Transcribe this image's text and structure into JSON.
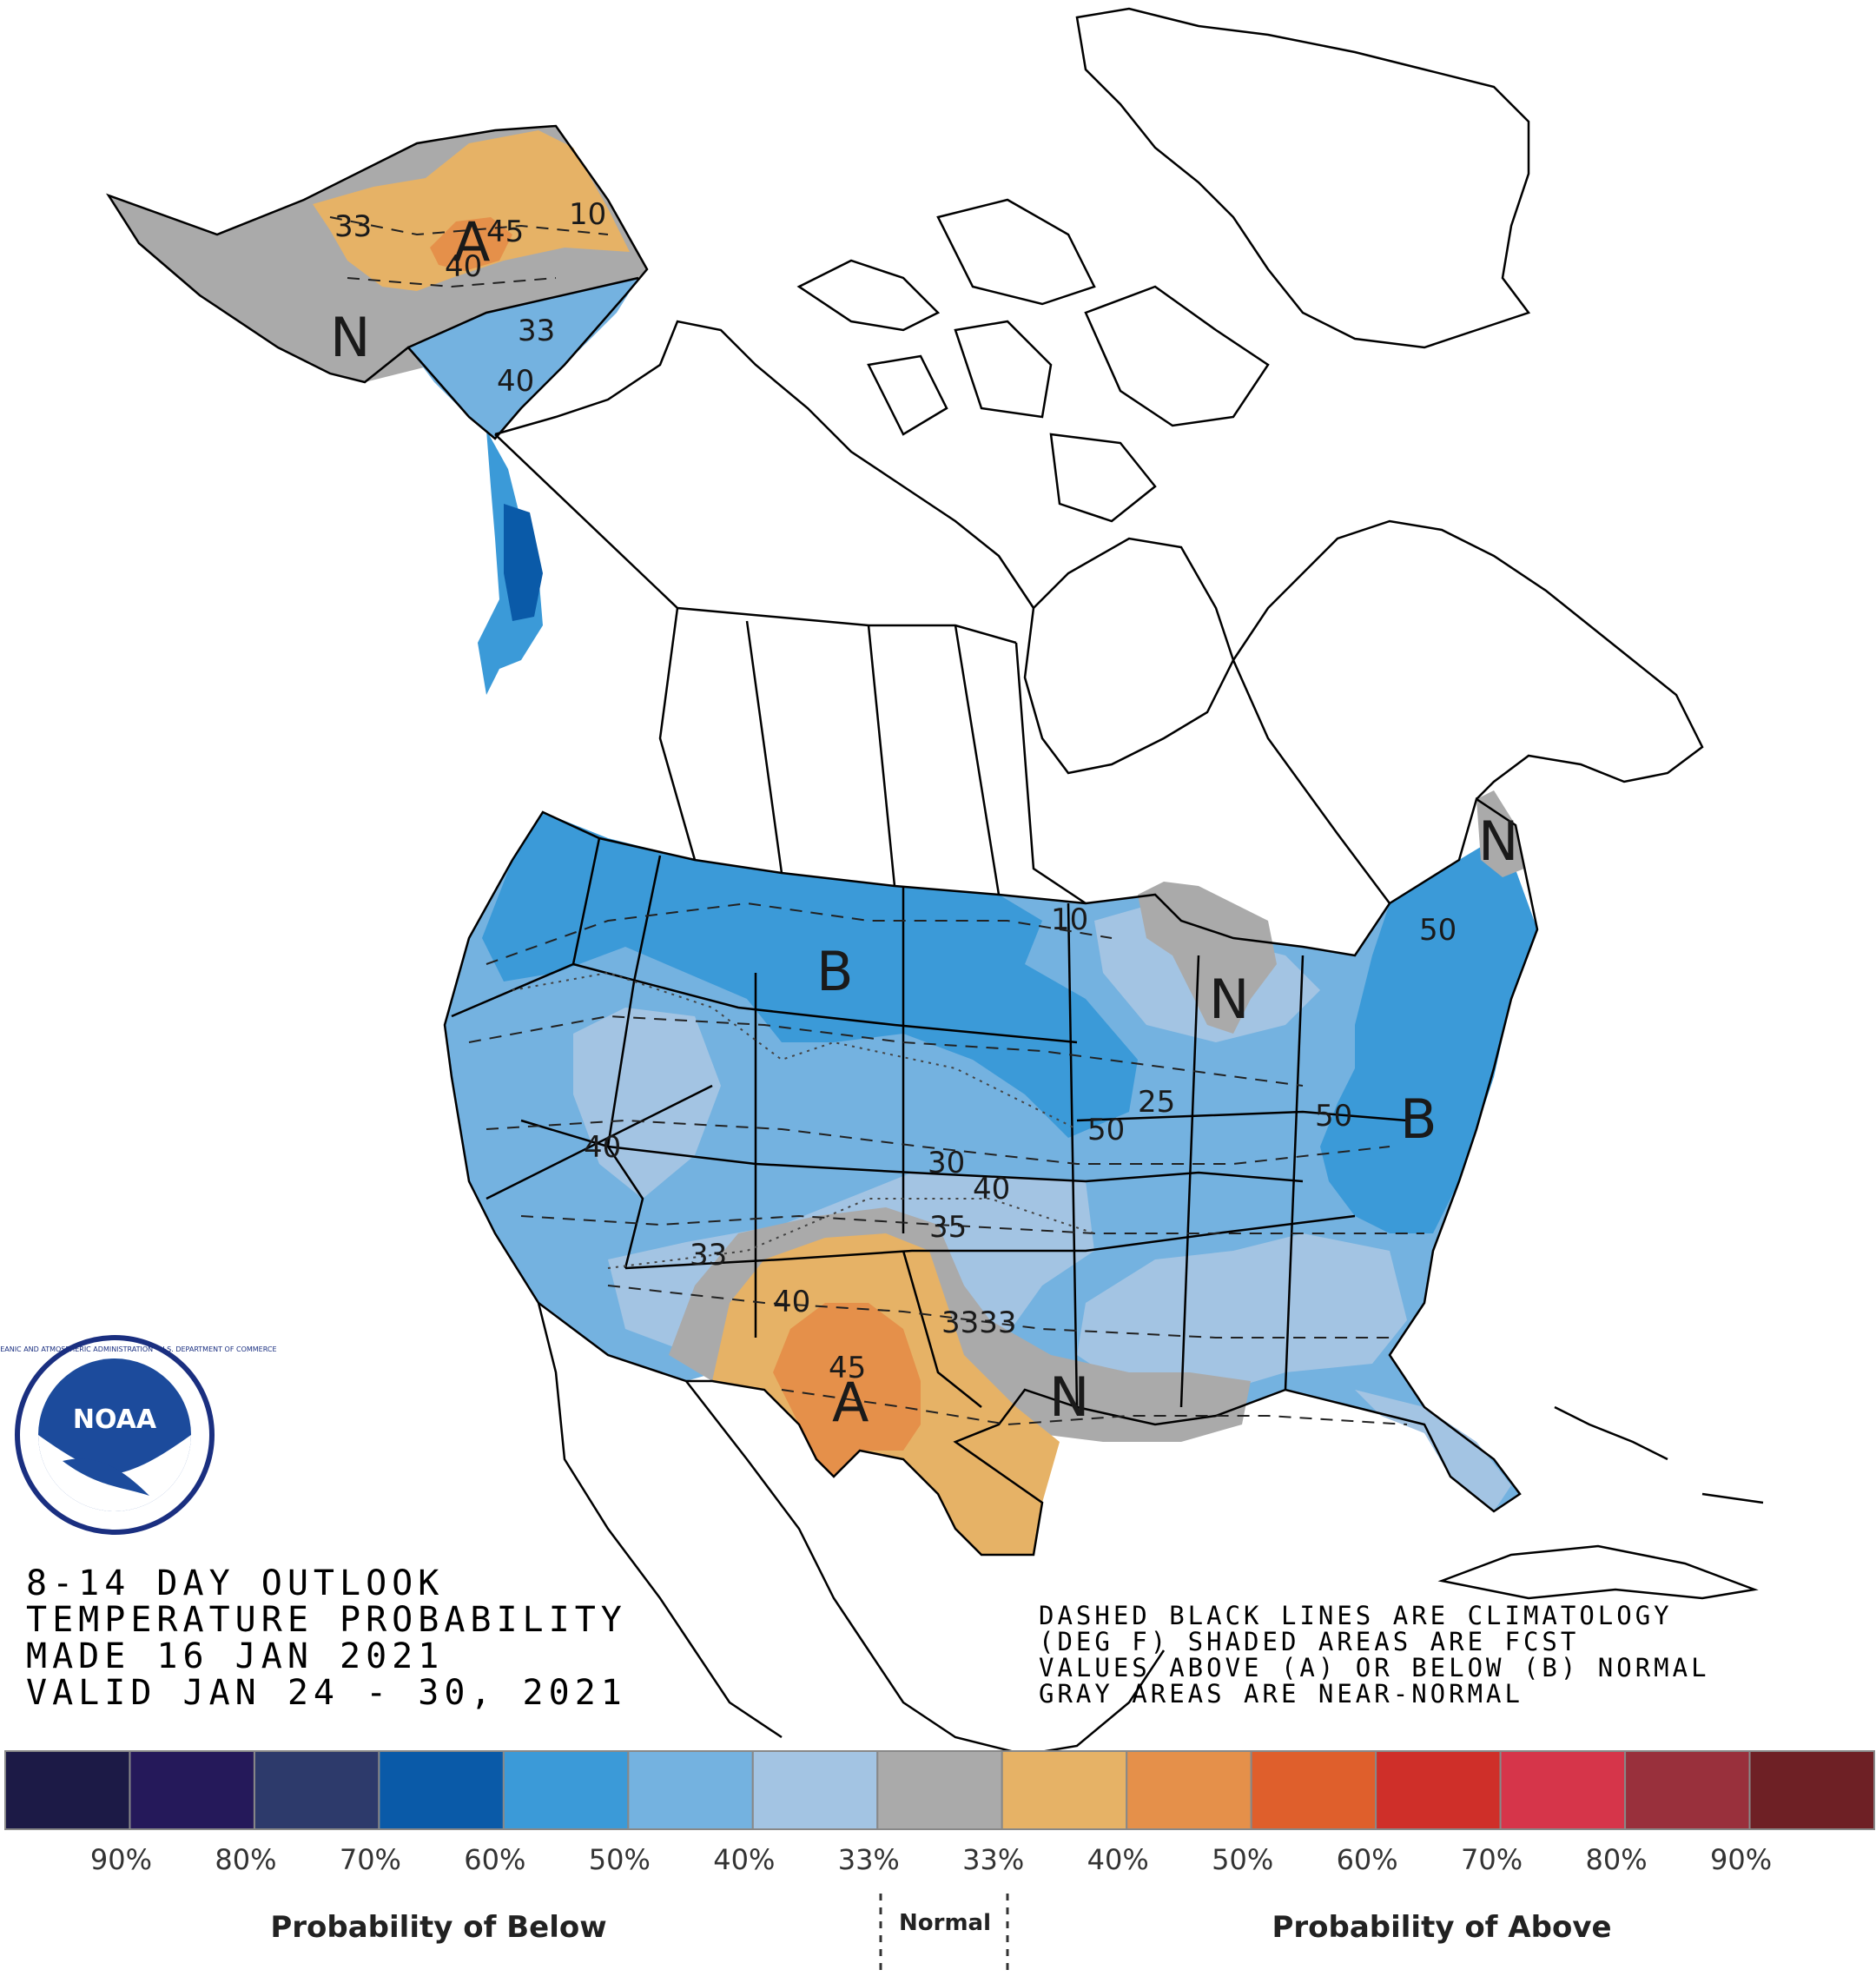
{
  "title": {
    "line1": "8-14 DAY OUTLOOK",
    "line2": "TEMPERATURE PROBABILITY",
    "line3": "MADE  16 JAN 2021",
    "line4": "VALID  JAN 24 - 30, 2021"
  },
  "notes": {
    "line1": "DASHED BLACK LINES ARE CLIMATOLOGY",
    "line2": "(DEG F) SHADED AREAS ARE FCST",
    "line3": "VALUES ABOVE (A) OR BELOW (B) NORMAL",
    "line4": "GRAY AREAS ARE NEAR-NORMAL"
  },
  "logo": {
    "text": "NOAA",
    "ring_text": "NATIONAL OCEANIC AND ATMOSPHERIC ADMINISTRATION · U.S. DEPARTMENT OF COMMERCE"
  },
  "map_labels": {
    "alaska_A": "A",
    "alaska_N": "N",
    "plains_B": "B",
    "greatlakes_N": "N",
    "east_B": "B",
    "texas_A": "A",
    "gulf_N": "N",
    "maine_N": "N",
    "c33_ak_w": "33",
    "c33_ak_s": "33",
    "c40_ak": "40",
    "c40_ak_blue": "40",
    "c10_ak": "10",
    "c45_ak": "45",
    "c40_west": "40",
    "c40_central": "40",
    "c50_central": "50",
    "c50_east": "50",
    "c50_ne": "50",
    "c33_sw": "33",
    "c3333": "3333",
    "c40_tx": "40",
    "c45_tx": "45",
    "c10_mn": "10",
    "c25_ia": "25",
    "c30_ks": "30",
    "c35_ok": "35"
  },
  "legend": {
    "colors": [
      "#1c1a46",
      "#25195a",
      "#2d3a6b",
      "#0a5aa8",
      "#3b9ad8",
      "#74b2e0",
      "#a3c4e3",
      "#aaaaaa",
      "#e6b266",
      "#e5904a",
      "#df5f2c",
      "#cf2f29",
      "#d6354a",
      "#99303c",
      "#6e2025"
    ],
    "ticks_below": [
      "90%",
      "80%",
      "70%",
      "60%",
      "50%",
      "40%",
      "33%"
    ],
    "ticks_above": [
      "33%",
      "40%",
      "50%",
      "60%",
      "70%",
      "80%",
      "90%"
    ],
    "below_label": "Probability of Below",
    "normal_label": "Normal",
    "above_label": "Probability of Above"
  }
}
